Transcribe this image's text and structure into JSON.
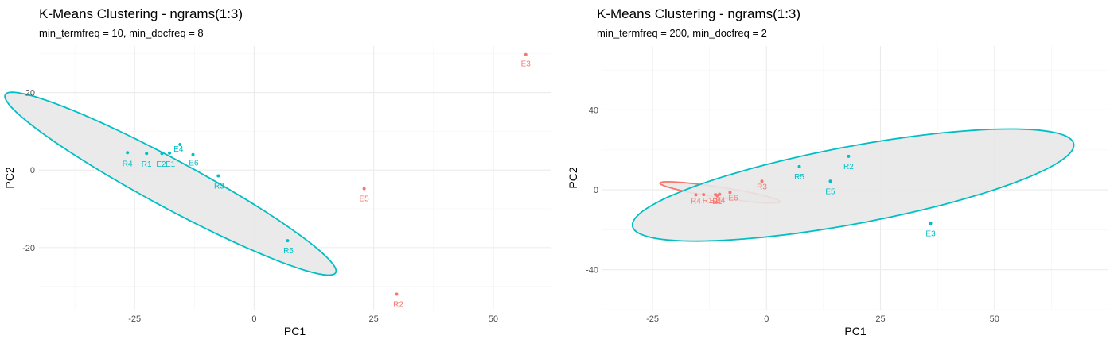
{
  "colors": {
    "cluster1": "#F8766D",
    "cluster2": "#00BFC4",
    "ellipse_fill": "#E8E8E8"
  },
  "chart_data": [
    {
      "type": "scatter",
      "title": "K-Means Clustering - ngrams(1:3)",
      "subtitle": "min_termfreq = 10, min_docfreq = 8",
      "xlabel": "PC1",
      "ylabel": "PC2",
      "xlim": [
        -45,
        62
      ],
      "ylim": [
        -36,
        32
      ],
      "xticks": [
        -25,
        0,
        25,
        50
      ],
      "xtick_labels": [
        "-25",
        "0",
        "25",
        "50"
      ],
      "yticks": [
        -20,
        0,
        20
      ],
      "ytick_labels": [
        "-20",
        "0",
        "20"
      ],
      "grid": true,
      "legend": "none",
      "points": [
        {
          "label": "R4",
          "x": -26.5,
          "y": 4.5,
          "cluster": 2
        },
        {
          "label": "R1",
          "x": -22.5,
          "y": 4.3,
          "cluster": 2
        },
        {
          "label": "E2",
          "x": -19.3,
          "y": 4.3,
          "cluster": 2
        },
        {
          "label": "E1",
          "x": -17.7,
          "y": 4.4,
          "cluster": 2
        },
        {
          "label": "E4",
          "x": -15.5,
          "y": 6.6,
          "cluster": 2
        },
        {
          "label": "E6",
          "x": -12.8,
          "y": 4.0,
          "cluster": 2
        },
        {
          "label": "R3",
          "x": -7.5,
          "y": -1.5,
          "cluster": 2
        },
        {
          "label": "R5",
          "x": 7.0,
          "y": -18.2,
          "cluster": 2
        },
        {
          "label": "E5",
          "x": 23.0,
          "y": -4.8,
          "cluster": 1
        },
        {
          "label": "R2",
          "x": 29.8,
          "y": -32.0,
          "cluster": 1
        },
        {
          "label": "E3",
          "x": 56.8,
          "y": 29.8,
          "cluster": 1
        }
      ],
      "ellipses": [
        {
          "cluster": 2,
          "cx": -17.5,
          "cy": -3.5,
          "rx": 41.5,
          "ry": 5.8,
          "angle_deg": -33.8
        }
      ]
    },
    {
      "type": "scatter",
      "title": "K-Means Clustering - ngrams(1:3)",
      "subtitle": "min_termfreq = 200, min_docfreq = 2",
      "xlabel": "PC1",
      "ylabel": "PC2",
      "xlim": [
        -36,
        75
      ],
      "ylim": [
        -60,
        72
      ],
      "xticks": [
        -25,
        0,
        25,
        50
      ],
      "xtick_labels": [
        "-25",
        "0",
        "25",
        "50"
      ],
      "yticks": [
        -40,
        0,
        40
      ],
      "ytick_labels": [
        "-40",
        "0",
        "40"
      ],
      "grid": true,
      "legend": "none",
      "points": [
        {
          "label": "R4",
          "x": -15.5,
          "y": -2.5,
          "cluster": 1
        },
        {
          "label": "R1",
          "x": -13.8,
          "y": -2.4,
          "cluster": 1
        },
        {
          "label": "E2",
          "x": -11.2,
          "y": -2.4,
          "cluster": 1
        },
        {
          "label": "E1",
          "x": -10.8,
          "y": -2.8,
          "cluster": 1
        },
        {
          "label": "E4",
          "x": -10.3,
          "y": -2.2,
          "cluster": 1
        },
        {
          "label": "E6",
          "x": -8.0,
          "y": -1.3,
          "cluster": 1
        },
        {
          "label": "R3",
          "x": -1.0,
          "y": 4.3,
          "cluster": 1
        },
        {
          "label": "R5",
          "x": 7.2,
          "y": 11.6,
          "cluster": 2
        },
        {
          "label": "R2",
          "x": 18.0,
          "y": 16.8,
          "cluster": 2
        },
        {
          "label": "E5",
          "x": 14.0,
          "y": 4.3,
          "cluster": 2
        },
        {
          "label": "E3",
          "x": 36.0,
          "y": -16.8,
          "cluster": 2
        }
      ],
      "ellipses": [
        {
          "cluster": 1,
          "cx": -10.2,
          "cy": -1.3,
          "rx": 14.0,
          "ry": 2.5,
          "angle_deg": -20
        },
        {
          "cluster": 2,
          "cx": 19.0,
          "cy": 2.4,
          "rx": 53.0,
          "ry": 18.0,
          "angle_deg": 25.6
        }
      ]
    }
  ]
}
